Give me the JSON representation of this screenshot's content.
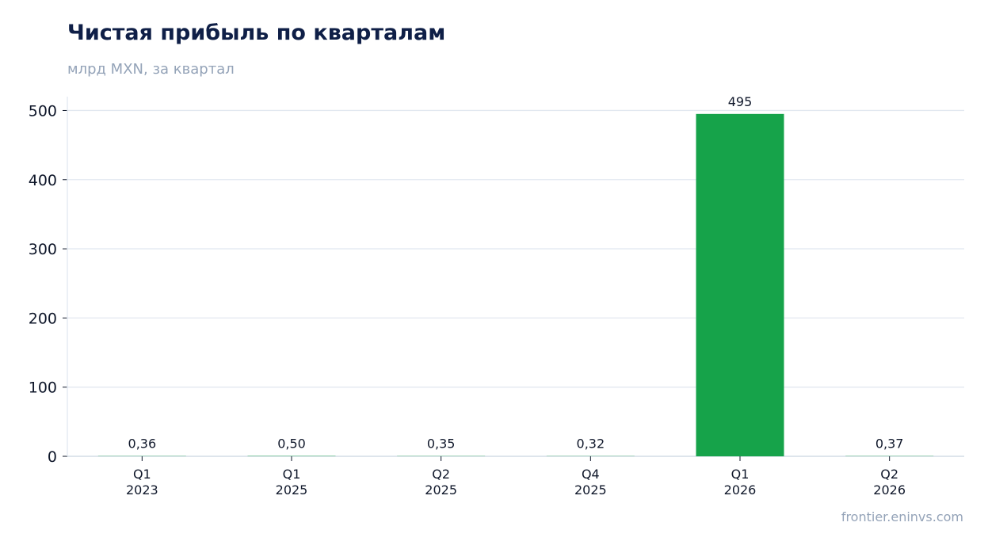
{
  "chart_data": {
    "type": "bar",
    "title": "Чистая прибыль по кварталам",
    "subtitle": "млрд MXN, за квартал",
    "categories": [
      [
        "Q1",
        "2023"
      ],
      [
        "Q1",
        "2025"
      ],
      [
        "Q2",
        "2025"
      ],
      [
        "Q4",
        "2025"
      ],
      [
        "Q1",
        "2026"
      ],
      [
        "Q2",
        "2026"
      ]
    ],
    "values": [
      0.36,
      0.5,
      0.35,
      0.32,
      495,
      0.37
    ],
    "data_labels": [
      "0,36",
      "0,50",
      "0,35",
      "0,32",
      "495",
      "0,37"
    ],
    "ylim": [
      0,
      520
    ],
    "yticks": [
      0,
      100,
      200,
      300,
      400,
      500
    ],
    "grid": true,
    "xlabel": "",
    "ylabel": "",
    "colors": {
      "bar": "#16a34a",
      "grid": "#e2e8f0",
      "axis": "#cbd5e1",
      "tick_text": "#0f172a",
      "title": "#0f1f47",
      "muted": "#94a3b8"
    }
  },
  "source": "frontier.eninvs.com"
}
